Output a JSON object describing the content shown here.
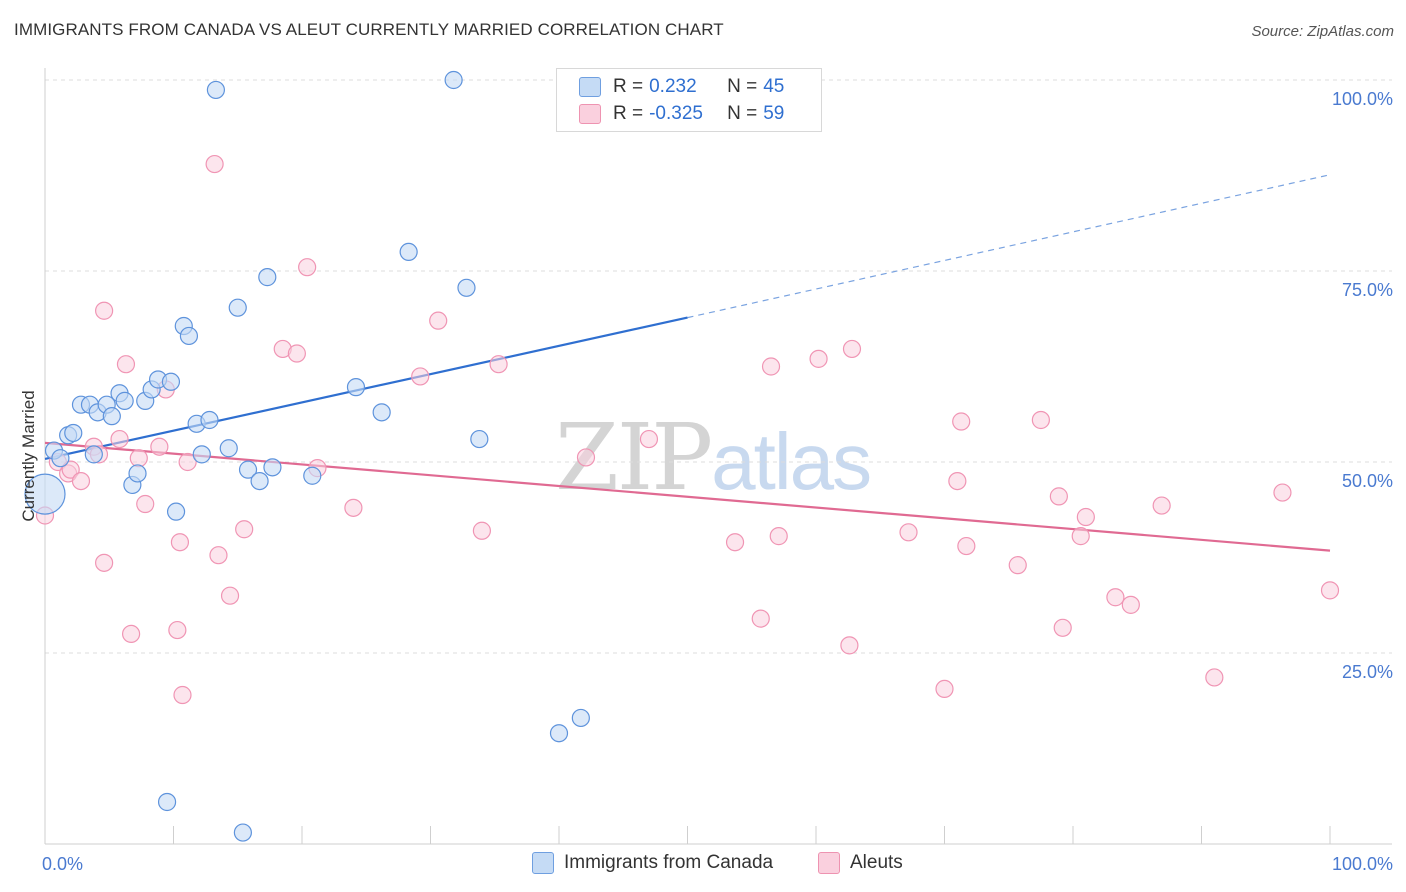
{
  "header": {
    "title": "IMMIGRANTS FROM CANADA VS ALEUT CURRENTLY MARRIED CORRELATION CHART",
    "source": "Source: ZipAtlas.com"
  },
  "watermark": {
    "zip": "ZIP",
    "atlas": "atlas"
  },
  "legend": {
    "rows": [
      {
        "r_label": "R =",
        "r_value": "0.232",
        "n_label": "N =",
        "n_value": "45",
        "color": "#a9c9f0"
      },
      {
        "r_label": "R =",
        "r_value": "-0.325",
        "n_label": "N =",
        "n_value": "59",
        "color": "#f6b9cb"
      }
    ]
  },
  "bottom_legend": {
    "items": [
      {
        "label": "Immigrants from Canada",
        "color": "#a9c9f0"
      },
      {
        "label": "Aleuts",
        "color": "#f6b9cb"
      }
    ]
  },
  "chart_data": {
    "type": "scatter",
    "ylabel": "Currently Married",
    "xlabel": "",
    "xlim": [
      0,
      100
    ],
    "ylim": [
      0,
      100
    ],
    "x_tick_labels": [
      {
        "value": 0,
        "label": "0.0%"
      },
      {
        "value": 100,
        "label": "100.0%"
      }
    ],
    "y_tick_labels": [
      {
        "value": 25,
        "label": "25.0%"
      },
      {
        "value": 50,
        "label": "50.0%"
      },
      {
        "value": 75,
        "label": "75.0%"
      },
      {
        "value": 100,
        "label": "100.0%"
      }
    ],
    "grid": "horizontal dashed at 25/50/75/100",
    "colors": {
      "blue": "#4a86d8",
      "pink": "#e8759a",
      "blue_fill": "#c5dbf5",
      "pink_fill": "#fad0de",
      "axis_text": "#4a7ad0"
    },
    "series": [
      {
        "name": "Immigrants from Canada",
        "color": "#4a86d8",
        "points": [
          [
            0.0,
            45.8
          ],
          [
            0.7,
            51.5
          ],
          [
            1.2,
            50.5
          ],
          [
            1.8,
            53.5
          ],
          [
            2.2,
            53.8
          ],
          [
            2.8,
            57.5
          ],
          [
            3.5,
            57.5
          ],
          [
            3.8,
            51.0
          ],
          [
            4.1,
            56.5
          ],
          [
            4.8,
            57.5
          ],
          [
            5.2,
            56.0
          ],
          [
            5.8,
            59.0
          ],
          [
            6.2,
            58.0
          ],
          [
            6.8,
            47.0
          ],
          [
            7.2,
            48.5
          ],
          [
            7.8,
            58.0
          ],
          [
            8.3,
            59.5
          ],
          [
            8.8,
            60.8
          ],
          [
            9.8,
            60.5
          ],
          [
            10.2,
            43.5
          ],
          [
            10.8,
            67.8
          ],
          [
            11.2,
            66.5
          ],
          [
            11.8,
            55.0
          ],
          [
            12.2,
            51.0
          ],
          [
            12.8,
            55.5
          ],
          [
            13.3,
            98.7
          ],
          [
            14.3,
            51.8
          ],
          [
            15.0,
            70.2
          ],
          [
            15.4,
            1.5
          ],
          [
            15.8,
            49.0
          ],
          [
            16.7,
            47.5
          ],
          [
            17.3,
            74.2
          ],
          [
            17.7,
            49.3
          ],
          [
            20.8,
            48.2
          ],
          [
            24.2,
            59.8
          ],
          [
            26.2,
            56.5
          ],
          [
            28.3,
            77.5
          ],
          [
            31.8,
            100.0
          ],
          [
            32.8,
            72.8
          ],
          [
            33.8,
            53.0
          ],
          [
            40.0,
            14.5
          ],
          [
            41.7,
            16.5
          ],
          [
            47.4,
            100.0
          ],
          [
            49.4,
            100.0
          ],
          [
            9.5,
            5.5
          ]
        ],
        "trend": {
          "x": [
            0,
            50
          ],
          "y": [
            50.4,
            68.9
          ],
          "dashed_extension": {
            "x": [
              50,
              100
            ],
            "y": [
              68.9,
              87.6
            ]
          }
        }
      },
      {
        "name": "Aleuts",
        "color": "#e8759a",
        "points": [
          [
            0.0,
            43.0
          ],
          [
            1.0,
            50.0
          ],
          [
            1.8,
            48.5
          ],
          [
            2.0,
            49.0
          ],
          [
            2.8,
            47.5
          ],
          [
            3.8,
            52.0
          ],
          [
            4.2,
            51.0
          ],
          [
            4.6,
            36.8
          ],
          [
            4.6,
            69.8
          ],
          [
            5.8,
            53.0
          ],
          [
            6.3,
            62.8
          ],
          [
            6.7,
            27.5
          ],
          [
            7.3,
            50.5
          ],
          [
            7.8,
            44.5
          ],
          [
            8.9,
            52.0
          ],
          [
            9.4,
            59.5
          ],
          [
            10.5,
            39.5
          ],
          [
            10.7,
            19.5
          ],
          [
            11.1,
            50.0
          ],
          [
            13.2,
            89.0
          ],
          [
            13.5,
            37.8
          ],
          [
            14.4,
            32.5
          ],
          [
            15.5,
            41.2
          ],
          [
            18.5,
            64.8
          ],
          [
            19.6,
            64.2
          ],
          [
            20.4,
            75.5
          ],
          [
            21.2,
            49.2
          ],
          [
            24.0,
            44.0
          ],
          [
            29.2,
            61.2
          ],
          [
            30.6,
            68.5
          ],
          [
            34.0,
            41.0
          ],
          [
            35.3,
            62.8
          ],
          [
            42.1,
            50.6
          ],
          [
            47.0,
            53.0
          ],
          [
            53.7,
            39.5
          ],
          [
            55.7,
            29.5
          ],
          [
            56.5,
            62.5
          ],
          [
            57.1,
            40.3
          ],
          [
            60.2,
            63.5
          ],
          [
            62.6,
            26.0
          ],
          [
            62.8,
            64.8
          ],
          [
            67.2,
            40.8
          ],
          [
            70.0,
            20.3
          ],
          [
            71.0,
            47.5
          ],
          [
            71.3,
            55.3
          ],
          [
            71.7,
            39.0
          ],
          [
            75.7,
            36.5
          ],
          [
            77.5,
            55.5
          ],
          [
            78.9,
            45.5
          ],
          [
            79.2,
            28.3
          ],
          [
            80.6,
            40.3
          ],
          [
            81.0,
            42.8
          ],
          [
            83.3,
            32.3
          ],
          [
            84.5,
            31.3
          ],
          [
            86.9,
            44.3
          ],
          [
            91.0,
            21.8
          ],
          [
            96.3,
            46.0
          ],
          [
            100.0,
            33.2
          ],
          [
            10.3,
            28.0
          ]
        ],
        "trend": {
          "x": [
            0,
            100
          ],
          "y": [
            52.5,
            38.4
          ]
        }
      }
    ]
  }
}
